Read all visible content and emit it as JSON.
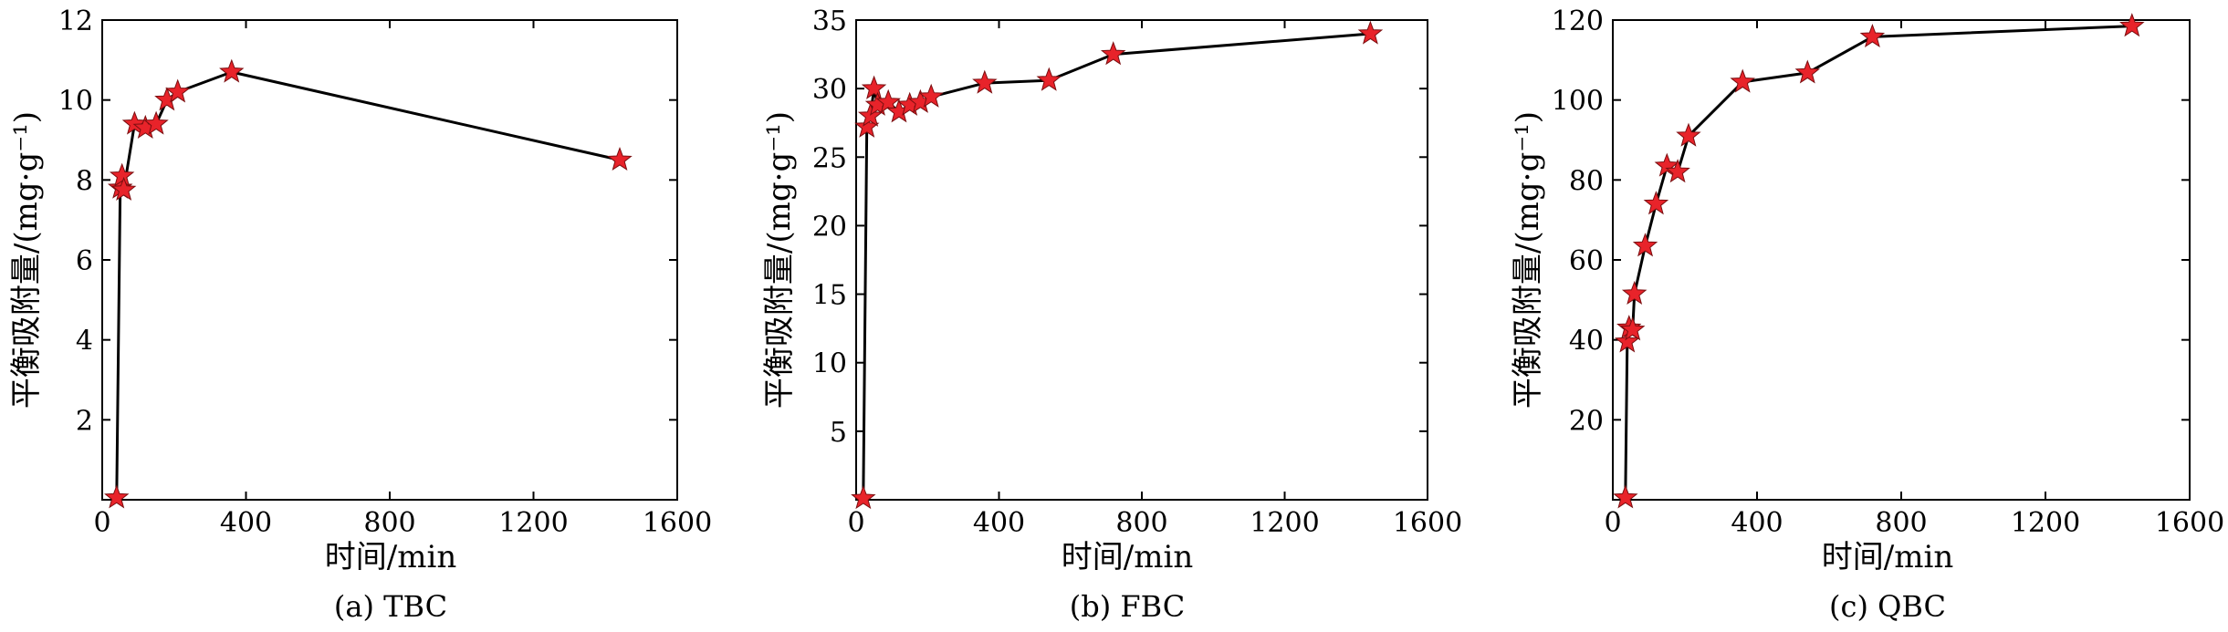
{
  "chart_data": [
    {
      "type": "line",
      "caption": "(a) TBC",
      "xlabel": "时间/min",
      "ylabel": "平衡吸附量/(mg·g⁻¹)",
      "xlim": [
        0,
        1600
      ],
      "ylim": [
        0,
        12
      ],
      "xticks": [
        0,
        400,
        800,
        1200,
        1600
      ],
      "yticks": [
        2,
        4,
        6,
        8,
        10,
        12
      ],
      "x_tick_labels": [
        "0",
        "400",
        "800",
        "1200",
        "1600"
      ],
      "y_tick_labels": [
        "2",
        "4",
        "6",
        "8",
        "10",
        "12"
      ],
      "grid": false,
      "marker": "star",
      "line_color": "#000000",
      "marker_color": "#e8232a",
      "x": [
        40,
        50,
        55,
        60,
        90,
        120,
        150,
        180,
        210,
        360,
        1440
      ],
      "y": [
        0.05,
        7.8,
        8.1,
        7.75,
        9.4,
        9.3,
        9.4,
        10.0,
        10.2,
        10.7,
        8.5
      ]
    },
    {
      "type": "line",
      "caption": "(b) FBC",
      "xlabel": "时间/min",
      "ylabel": "平衡吸附量/(mg·g⁻¹)",
      "xlim": [
        0,
        1600
      ],
      "ylim": [
        0,
        35
      ],
      "xticks": [
        0,
        400,
        800,
        1200,
        1600
      ],
      "yticks": [
        5,
        10,
        15,
        20,
        25,
        30,
        35
      ],
      "x_tick_labels": [
        "0",
        "400",
        "800",
        "1200",
        "1600"
      ],
      "y_tick_labels": [
        "5",
        "10",
        "15",
        "20",
        "25",
        "30",
        "35"
      ],
      "grid": false,
      "marker": "star",
      "line_color": "#000000",
      "marker_color": "#e8232a",
      "x": [
        20,
        30,
        40,
        50,
        60,
        90,
        120,
        150,
        180,
        210,
        360,
        540,
        720,
        1440
      ],
      "y": [
        0.1,
        27.2,
        28.0,
        30.0,
        28.8,
        29.0,
        28.3,
        28.8,
        29.0,
        29.4,
        30.4,
        30.6,
        32.5,
        34.0
      ]
    },
    {
      "type": "line",
      "caption": "(c) QBC",
      "xlabel": "时间/min",
      "ylabel": "平衡吸附量/(mg·g⁻¹)",
      "xlim": [
        0,
        1600
      ],
      "ylim": [
        0,
        120
      ],
      "xticks": [
        0,
        400,
        800,
        1200,
        1600
      ],
      "yticks": [
        20,
        40,
        60,
        80,
        100,
        120
      ],
      "x_tick_labels": [
        "0",
        "400",
        "800",
        "1200",
        "1600"
      ],
      "y_tick_labels": [
        "20",
        "40",
        "60",
        "80",
        "100",
        "120"
      ],
      "grid": false,
      "marker": "star",
      "line_color": "#000000",
      "marker_color": "#e8232a",
      "x": [
        35,
        40,
        45,
        55,
        60,
        90,
        120,
        150,
        180,
        210,
        360,
        540,
        720,
        1440
      ],
      "y": [
        0.5,
        39.5,
        43.0,
        42.5,
        51.5,
        63.5,
        74.0,
        83.5,
        82.0,
        91.0,
        104.5,
        106.8,
        115.8,
        118.5
      ]
    }
  ]
}
